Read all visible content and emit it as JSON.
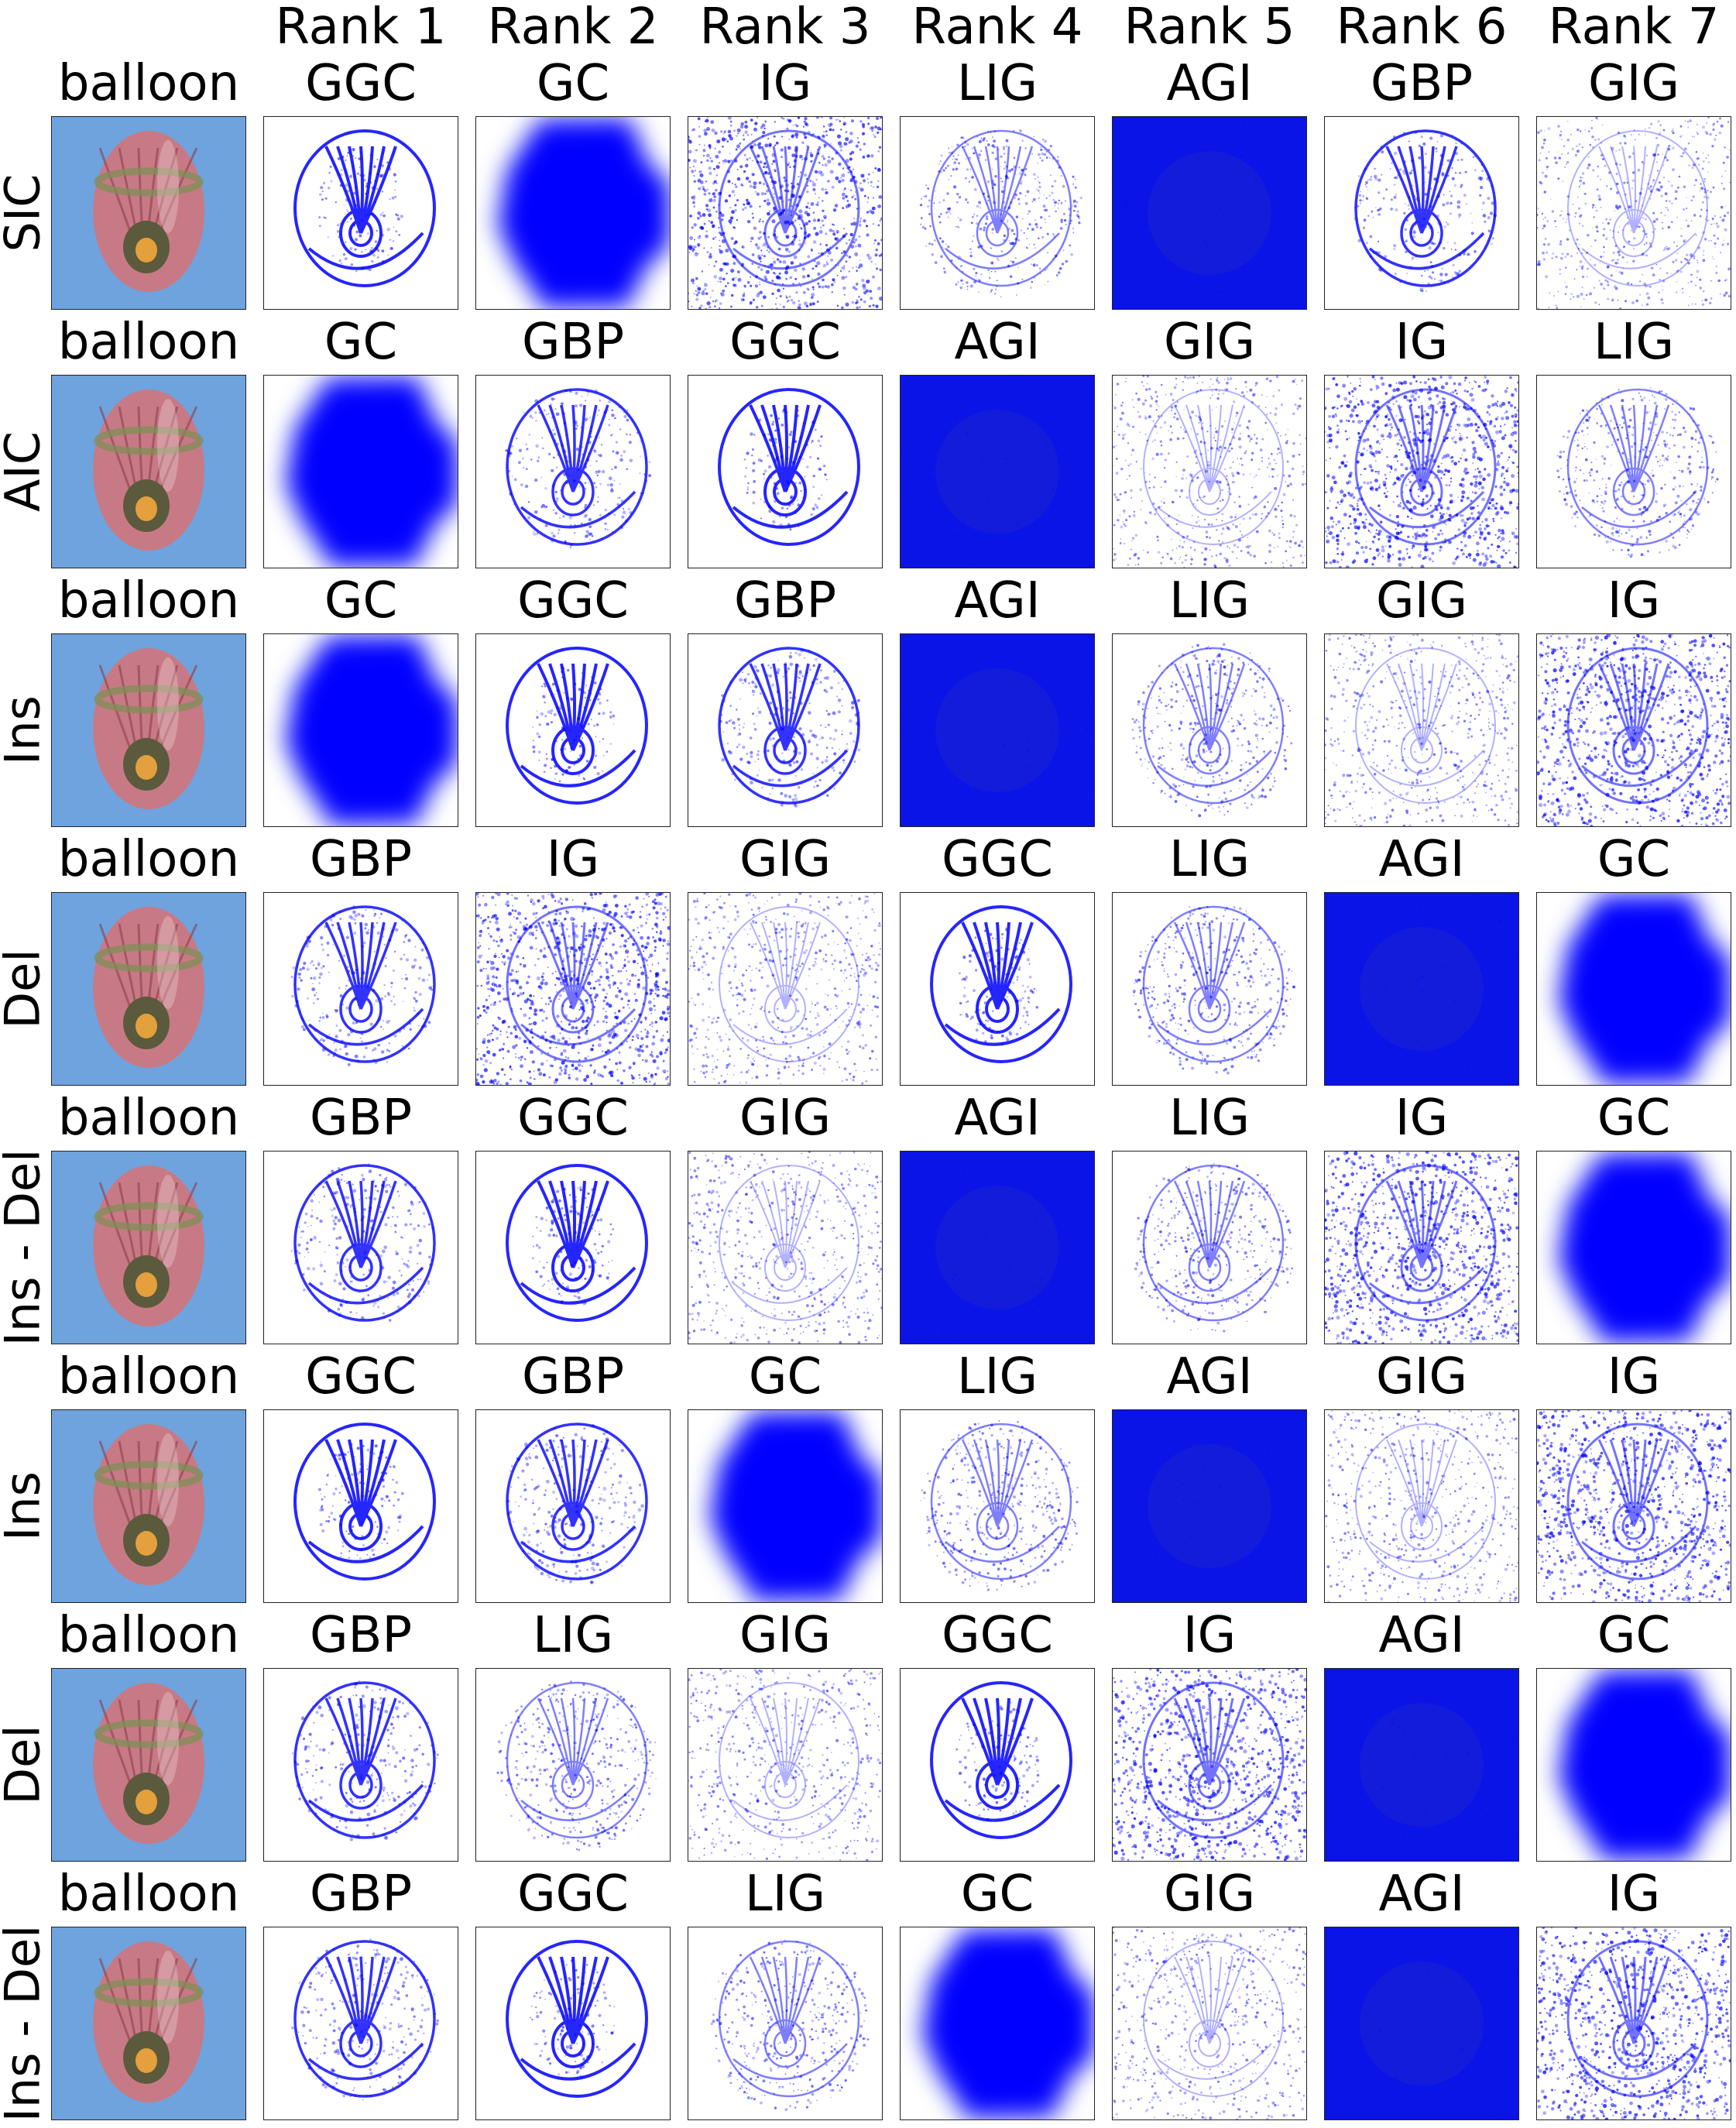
{
  "figure": {
    "ranks": [
      "Rank 1",
      "Rank 2",
      "Rank 3",
      "Rank 4",
      "Rank 5",
      "Rank 6",
      "Rank 7"
    ],
    "rows": [
      {
        "metric": "SIC",
        "class_label": "balloon",
        "methods": [
          "GGC",
          "GC",
          "IG",
          "LIG",
          "AGI",
          "GBP",
          "GIG"
        ]
      },
      {
        "metric": "AIC",
        "class_label": "balloon",
        "methods": [
          "GC",
          "GBP",
          "GGC",
          "AGI",
          "GIG",
          "IG",
          "LIG"
        ]
      },
      {
        "metric": "Ins",
        "class_label": "balloon",
        "methods": [
          "GC",
          "GGC",
          "GBP",
          "AGI",
          "LIG",
          "GIG",
          "IG"
        ]
      },
      {
        "metric": "Del",
        "class_label": "balloon",
        "methods": [
          "GBP",
          "IG",
          "GIG",
          "GGC",
          "LIG",
          "AGI",
          "GC"
        ]
      },
      {
        "metric": "Ins - Del",
        "class_label": "balloon",
        "methods": [
          "GBP",
          "GGC",
          "GIG",
          "AGI",
          "LIG",
          "IG",
          "GC"
        ]
      },
      {
        "metric": "Ins",
        "class_label": "balloon",
        "methods": [
          "GGC",
          "GBP",
          "GC",
          "LIG",
          "AGI",
          "GIG",
          "IG"
        ]
      },
      {
        "metric": "Del",
        "class_label": "balloon",
        "methods": [
          "GBP",
          "LIG",
          "GIG",
          "GGC",
          "IG",
          "AGI",
          "GC"
        ]
      },
      {
        "metric": "Ins - Del",
        "class_label": "balloon",
        "methods": [
          "GBP",
          "GGC",
          "LIG",
          "GC",
          "GIG",
          "AGI",
          "IG"
        ]
      }
    ]
  },
  "colors": {
    "saliency_blue": "#0000ff",
    "sky_blue": "#6ea3de",
    "balloon_pink": "#c77a85",
    "balloon_stripe": "#7f8f55",
    "tile_border": "#222222"
  }
}
